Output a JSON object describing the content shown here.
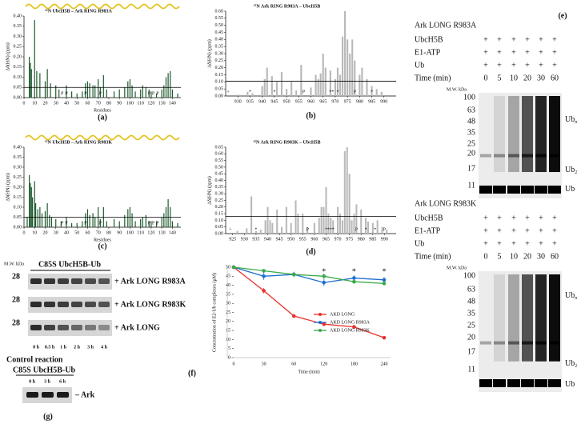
{
  "panel_a": {
    "type": "bar",
    "title": "¹⁵N UbcH5B – Ark RING R983A",
    "ylabel": "Δδ(HN) (ppm)",
    "xlabel": "Residues",
    "caption": "(a)",
    "color": "#1f5a2e",
    "threshold": 0.05,
    "xlim": [
      0,
      148
    ],
    "xticks": [
      0,
      10,
      20,
      30,
      40,
      50,
      60,
      70,
      80,
      90,
      100,
      110,
      120,
      130,
      140
    ],
    "ylim": [
      0,
      0.4
    ],
    "yticks": [
      {
        "value": 0,
        "label": "0.00"
      },
      0.05,
      {
        "value": 0.1,
        "label": "0.10"
      },
      0.15,
      {
        "value": 0.2,
        "label": "0.20"
      },
      0.25,
      {
        "value": 0.3,
        "label": "0.30"
      },
      0.35,
      {
        "value": 0.4,
        "label": "0.40"
      }
    ],
    "x": [
      5,
      6,
      7,
      10,
      12,
      15,
      20,
      22,
      25,
      30,
      33,
      40,
      45,
      50,
      55,
      58,
      60,
      62,
      65,
      67,
      70,
      72,
      75,
      78,
      85,
      90,
      95,
      98,
      100,
      102,
      105,
      110,
      112,
      115,
      118,
      120,
      125,
      130,
      132,
      134,
      136,
      138,
      140,
      145
    ],
    "values": [
      0.2,
      0.17,
      0.14,
      0.38,
      0.13,
      0.12,
      0.08,
      0.14,
      0.07,
      0.06,
      0.04,
      0.06,
      0.03,
      0.02,
      0.03,
      0.07,
      0.08,
      0.07,
      0.06,
      0.06,
      0.09,
      0.05,
      0.11,
      0.04,
      0.03,
      0.04,
      0.05,
      0.08,
      0.09,
      0.06,
      0.03,
      0.04,
      0.06,
      0.05,
      0.04,
      0.03,
      0.02,
      0.04,
      0.06,
      0.1,
      0.12,
      0.13,
      0.04,
      0.02
    ],
    "annotations": [
      {
        "x": 36,
        "label": "P"
      },
      {
        "x": 40,
        "label": "P"
      },
      {
        "x": 58,
        "label": "P"
      },
      {
        "x": 72,
        "label": "P"
      },
      {
        "x": 118,
        "label": "P"
      },
      {
        "x": 122,
        "label": "P"
      },
      {
        "x": 126,
        "label": "P"
      }
    ]
  },
  "panel_b": {
    "type": "bar",
    "title": "¹⁵N Ark RING R983A – UbcH5B",
    "ylabel": "Δδ(HN) (ppm)",
    "caption": "(b)",
    "color": "#b8b8b8",
    "threshold": 0.105,
    "xlim": [
      925,
      995
    ],
    "xticks": [
      930,
      935,
      940,
      945,
      950,
      955,
      960,
      965,
      970,
      975,
      980,
      985,
      990
    ],
    "ylim": [
      0,
      0.6
    ],
    "yticks": [
      {
        "value": 0,
        "label": "0.00"
      },
      0.05,
      {
        "value": 0.1,
        "label": "0.10"
      },
      0.15,
      {
        "value": 0.2,
        "label": "0.20"
      },
      0.25,
      {
        "value": 0.3,
        "label": "0.30"
      },
      0.35,
      {
        "value": 0.4,
        "label": "0.40"
      },
      0.45,
      {
        "value": 0.5,
        "label": "0.50"
      },
      0.55,
      {
        "value": 0.6,
        "label": "0.60"
      }
    ],
    "x": [
      930,
      934,
      936,
      940,
      941,
      942,
      944,
      946,
      948,
      950,
      952,
      954,
      956,
      960,
      962,
      963,
      964,
      965,
      966,
      968,
      970,
      971,
      972,
      973,
      974,
      975,
      976,
      977,
      978,
      980,
      981,
      983,
      985,
      987,
      989
    ],
    "values": [
      0.01,
      0.03,
      0.02,
      0.07,
      0.12,
      0.2,
      0.14,
      0.1,
      0.17,
      0.05,
      0.1,
      0.04,
      0.22,
      0.06,
      0.15,
      0.12,
      0.16,
      0.3,
      0.2,
      0.18,
      0.12,
      0.2,
      0.15,
      0.42,
      0.6,
      0.4,
      0.3,
      0.4,
      0.25,
      0.15,
      0.2,
      0.12,
      0.07,
      0.05,
      0.03
    ],
    "annotations": [
      {
        "x": 926,
        "label": "+",
        "color": "#000000"
      },
      {
        "x": 935,
        "label": "*",
        "color": "#000000"
      },
      {
        "x": 945,
        "label": "*",
        "color": "#e02020"
      },
      {
        "x": 957,
        "label": "P",
        "color": "#000000"
      },
      {
        "x": 968,
        "label": "*",
        "color": "#e02020"
      },
      {
        "x": 969,
        "label": "*",
        "color": "#e02020"
      },
      {
        "x": 971,
        "label": "*",
        "color": "#e02020"
      },
      {
        "x": 978,
        "label": "P",
        "color": "#000000"
      },
      {
        "x": 985,
        "label": "*",
        "color": "#e02020"
      }
    ]
  },
  "panel_c": {
    "type": "bar",
    "title": "¹⁵N UbcH5B – Ark RING R983K",
    "ylabel": "Δδ(HN) (ppm)",
    "xlabel": "Residues",
    "caption": "(c)",
    "color": "#1f5a2e",
    "threshold": 0.05,
    "xlim": [
      0,
      148
    ],
    "xticks": [
      0,
      10,
      20,
      30,
      40,
      50,
      60,
      70,
      80,
      90,
      100,
      110,
      120,
      130,
      140
    ],
    "ylim": [
      0,
      0.4
    ],
    "yticks": [
      {
        "value": 0,
        "label": "0.00"
      },
      0.05,
      {
        "value": 0.1,
        "label": "0.10"
      },
      0.15,
      {
        "value": 0.2,
        "label": "0.20"
      },
      0.25,
      {
        "value": 0.3,
        "label": "0.30"
      },
      0.35,
      {
        "value": 0.4,
        "label": "0.40"
      }
    ],
    "x": [
      3,
      5,
      6,
      7,
      8,
      10,
      11,
      13,
      15,
      17,
      20,
      22,
      24,
      26,
      30,
      35,
      40,
      45,
      50,
      55,
      58,
      60,
      62,
      65,
      67,
      70,
      72,
      75,
      78,
      85,
      90,
      95,
      98,
      100,
      102,
      105,
      110,
      112,
      115,
      118,
      120,
      125,
      130,
      132,
      134,
      136,
      138,
      140,
      145
    ],
    "values": [
      0.05,
      0.26,
      0.22,
      0.2,
      0.15,
      0.23,
      0.12,
      0.09,
      0.1,
      0.07,
      0.08,
      0.12,
      0.06,
      0.05,
      0.04,
      0.03,
      0.05,
      0.02,
      0.02,
      0.03,
      0.07,
      0.09,
      0.06,
      0.07,
      0.05,
      0.1,
      0.04,
      0.1,
      0.03,
      0.04,
      0.03,
      0.06,
      0.09,
      0.1,
      0.07,
      0.03,
      0.04,
      0.05,
      0.06,
      0.03,
      0.03,
      0.03,
      0.05,
      0.07,
      0.1,
      0.14,
      0.1,
      0.03,
      0.02
    ],
    "annotations": [
      {
        "x": 36,
        "label": "P"
      },
      {
        "x": 40,
        "label": "P"
      },
      {
        "x": 58,
        "label": "P"
      },
      {
        "x": 72,
        "label": "P"
      },
      {
        "x": 118,
        "label": "P"
      },
      {
        "x": 122,
        "label": "P"
      },
      {
        "x": 126,
        "label": "P"
      }
    ]
  },
  "panel_d": {
    "type": "bar",
    "title": "¹⁵N Ark RING R983K – UbcH5B",
    "ylabel": "Δδ(HN) (ppm)",
    "caption": "(d)",
    "color": "#b8b8b8",
    "threshold": 0.13,
    "xlim": [
      922,
      995
    ],
    "xticks": [
      925,
      930,
      935,
      940,
      945,
      950,
      955,
      960,
      965,
      970,
      975,
      980,
      985,
      990
    ],
    "ylim": [
      0,
      0.65
    ],
    "yticks": [
      {
        "value": 0,
        "label": "0.00"
      },
      0.05,
      {
        "value": 0.1,
        "label": "0.10"
      },
      0.15,
      {
        "value": 0.2,
        "label": "0.20"
      },
      0.25,
      {
        "value": 0.3,
        "label": "0.30"
      },
      0.35,
      {
        "value": 0.4,
        "label": "0.40"
      },
      0.45,
      {
        "value": 0.5,
        "label": "0.50"
      },
      0.55,
      {
        "value": 0.6,
        "label": "0.60"
      },
      0.65
    ],
    "x": [
      927,
      931,
      933,
      935,
      937,
      939,
      940,
      941,
      942,
      944,
      946,
      948,
      950,
      952,
      953,
      955,
      957,
      960,
      962,
      963,
      964,
      965,
      966,
      967,
      968,
      970,
      971,
      972,
      973,
      974,
      975,
      976,
      977,
      978,
      980,
      982,
      983,
      985,
      987,
      989,
      991
    ],
    "values": [
      0.02,
      0.04,
      0.28,
      0.02,
      0.03,
      0.1,
      0.2,
      0.1,
      0.08,
      0.18,
      0.05,
      0.2,
      0.08,
      0.25,
      0.15,
      0.15,
      0.05,
      0.08,
      0.12,
      0.2,
      0.2,
      0.35,
      0.15,
      0.12,
      0.1,
      0.2,
      0.15,
      0.1,
      0.62,
      0.65,
      0.45,
      0.1,
      0.15,
      0.22,
      0.18,
      0.12,
      0.09,
      0.08,
      0.1,
      0.05,
      0.03
    ],
    "annotations": [
      {
        "x": 924,
        "label": "+",
        "color": "#000000"
      },
      {
        "x": 935,
        "label": "*",
        "color": "#000000"
      },
      {
        "x": 957,
        "label": "P",
        "color": "#000000"
      },
      {
        "x": 965,
        "label": "*",
        "color": "#e02020"
      },
      {
        "x": 966,
        "label": "*",
        "color": "#e02020"
      },
      {
        "x": 967,
        "label": "*",
        "color": "#e02020"
      },
      {
        "x": 968,
        "label": "*",
        "color": "#e02020"
      },
      {
        "x": 978,
        "label": "P",
        "color": "#000000"
      },
      {
        "x": 982,
        "label": "*",
        "color": "#e02020"
      },
      {
        "x": 986,
        "label": "*",
        "color": "#e02020"
      },
      {
        "x": 990,
        "label": "P",
        "color": "#000000"
      }
    ]
  },
  "panel_e": {
    "caption": "(e)",
    "gels": [
      {
        "title": "Ark LONG R983A",
        "rows": [
          {
            "label": "UbcH5B",
            "marks": [
              "+",
              "+",
              "+",
              "+",
              "+",
              "+"
            ]
          },
          {
            "label": "E1-ATP",
            "marks": [
              "+",
              "+",
              "+",
              "+",
              "+",
              "+"
            ]
          },
          {
            "label": "Ub",
            "marks": [
              "+",
              "+",
              "+",
              "+",
              "+",
              "+"
            ]
          }
        ],
        "time_label": "Time (min)",
        "times": [
          0,
          5,
          10,
          20,
          30,
          60
        ],
        "mw_label": "M.W. kDa",
        "mw": [
          100,
          63,
          48,
          35,
          25,
          20,
          17,
          11
        ],
        "bands": [
          {
            "main": "Ub",
            "sub": "n"
          },
          {
            "main": "Ub",
            "sub": "2"
          },
          {
            "main": "Ub"
          }
        ]
      },
      {
        "title": "Ark LONG R983K",
        "rows": [
          {
            "label": "UbcH5B",
            "marks": [
              "+",
              "+",
              "+",
              "+",
              "+",
              "+"
            ]
          },
          {
            "label": "E1-ATP",
            "marks": [
              "+",
              "+",
              "+",
              "+",
              "+",
              "+"
            ]
          },
          {
            "label": "Ub",
            "marks": [
              "+",
              "+",
              "+",
              "+",
              "+",
              "+"
            ]
          }
        ],
        "time_label": "Time (min)",
        "times": [
          0,
          5,
          10,
          20,
          30,
          60
        ],
        "mw_label": "M.W. kDa",
        "mw": [
          100,
          63,
          48,
          35,
          25,
          20,
          17,
          11
        ],
        "bands": [
          {
            "main": "Ub",
            "sub": "n"
          },
          {
            "main": "Ub",
            "sub": "2"
          },
          {
            "main": "Ub"
          }
        ]
      }
    ]
  },
  "panel_f_gel": {
    "mw_label": "M.W. kDa",
    "header": "C85S UbcH5B-Ub",
    "strips": [
      {
        "mw": 28,
        "label": "+ Ark LONG R983A"
      },
      {
        "mw": 28,
        "label": "+ Ark LONG R983K"
      },
      {
        "mw": 28,
        "label": "+ Ark LONG"
      }
    ],
    "times": [
      "0 h",
      "0.5 h",
      "1 h",
      "2 h",
      "3 h",
      "4 h"
    ]
  },
  "panel_g": {
    "title": "Control reaction",
    "header": "C85S UbcH5B-Ub",
    "times": [
      "0 h",
      "3 h",
      "6 h"
    ],
    "label": "– Ark",
    "caption": "(g)"
  },
  "chart_data": {
    "type": "line",
    "caption": "(f)",
    "ylabel": "Concentration of E2-Ub complexes (μM)",
    "xlabel": "Time (min)",
    "categories": [
      "0",
      "30",
      "60",
      "120",
      "180",
      "240"
    ],
    "ylim": [
      0,
      50
    ],
    "yticks": [
      0,
      5,
      10,
      15,
      20,
      25,
      30,
      35,
      40,
      45,
      50
    ],
    "series": [
      {
        "name": "AKD LONG",
        "color": "#e8312a",
        "values": [
          50,
          37,
          23,
          18.5,
          17,
          11
        ],
        "errors": [
          0.5,
          1.5,
          1,
          0.6,
          0.6,
          0.5
        ]
      },
      {
        "name": "AKD LONG R983A",
        "color": "#1f6fd1",
        "values": [
          50,
          45,
          46,
          41.5,
          44,
          43
        ],
        "errors": [
          0.5,
          2,
          1.5,
          2,
          1.5,
          1.5
        ]
      },
      {
        "name": "AKD LONG R983K",
        "color": "#3aa84a",
        "values": [
          50,
          48,
          46,
          45,
          42,
          41
        ],
        "errors": [
          0.5,
          1,
          1,
          1.5,
          1,
          1
        ]
      }
    ],
    "annotations": [
      {
        "x": 3,
        "label": "*"
      },
      {
        "x": 4,
        "label": "*"
      },
      {
        "x": 5,
        "label": "*"
      }
    ]
  }
}
